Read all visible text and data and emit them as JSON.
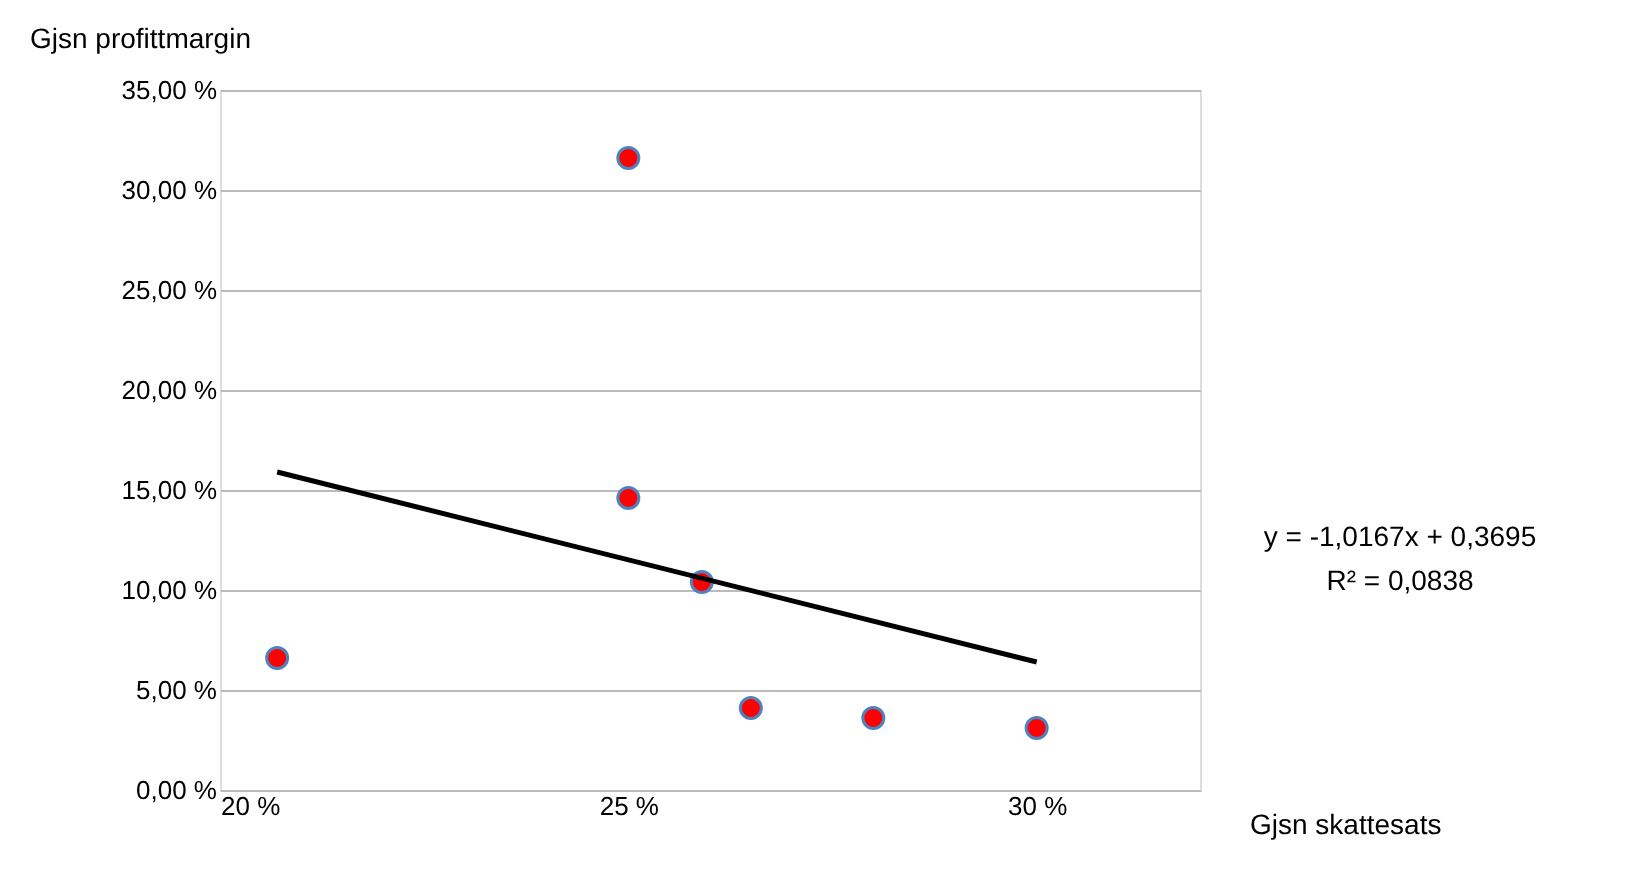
{
  "chart_data": {
    "type": "scatter",
    "ylabel": "Gjsn profittmargin",
    "xlabel": "Gjsn skattesats",
    "xlim": [
      0.2,
      0.32
    ],
    "xticks": [
      {
        "value": 0.2,
        "label": "20 %"
      },
      {
        "value": 0.25,
        "label": "25 %"
      },
      {
        "value": 0.3,
        "label": "30 %"
      }
    ],
    "ylim": [
      0,
      0.35
    ],
    "yticks": [
      {
        "value": 0,
        "label": "0,00 %"
      },
      {
        "value": 0.05,
        "label": "5,00 %"
      },
      {
        "value": 0.1,
        "label": "10,00 %"
      },
      {
        "value": 0.15,
        "label": "15,00 %"
      },
      {
        "value": 0.2,
        "label": "20,00 %"
      },
      {
        "value": 0.25,
        "label": "25,00 %"
      },
      {
        "value": 0.3,
        "label": "30,00 %"
      },
      {
        "value": 0.35,
        "label": "35,00 %"
      }
    ],
    "grid": "y",
    "marker": "circle",
    "series": [
      {
        "color": "#ff0000",
        "x": [
          0.207,
          0.25,
          0.25,
          0.259,
          0.265,
          0.28,
          0.3
        ],
        "values": [
          0.066,
          0.316,
          0.146,
          0.104,
          0.041,
          0.036,
          0.031
        ]
      },
      {
        "type": "line",
        "marker": "none",
        "line_style": "solid",
        "color": "#000000",
        "x": [
          0.207,
          0.3
        ],
        "values": [
          0.159,
          0.064
        ]
      }
    ],
    "annotations": [
      "y = -1,0167x + 0,3695",
      "R² = 0,0838"
    ]
  }
}
